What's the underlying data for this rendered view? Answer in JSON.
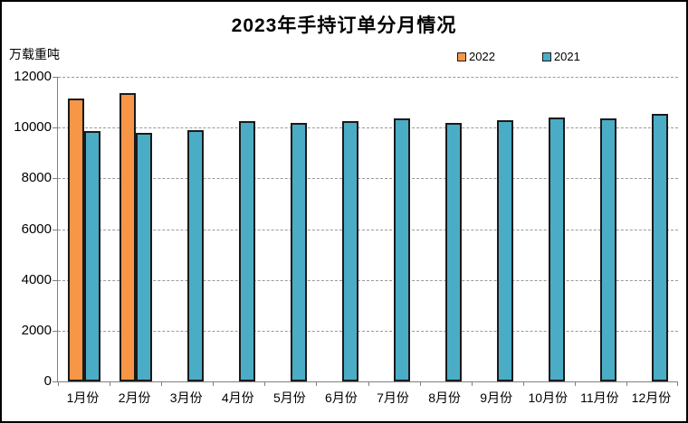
{
  "window": {
    "background": "#ffffff",
    "frame_border": "#000000"
  },
  "chart_data": {
    "type": "bar",
    "title": "2023年手持订单分月情况",
    "ylabel": "万载重吨",
    "xlabel": "",
    "categories": [
      "1月份",
      "2月份",
      "3月份",
      "4月份",
      "5月份",
      "6月份",
      "7月份",
      "8月份",
      "9月份",
      "10月份",
      "11月份",
      "12月份"
    ],
    "series": [
      {
        "name": "2022",
        "color": "#F79646",
        "values": [
          11150,
          11350,
          null,
          null,
          null,
          null,
          null,
          null,
          null,
          null,
          null,
          null
        ]
      },
      {
        "name": "2021",
        "color": "#4BACC6",
        "values": [
          9850,
          9800,
          9900,
          10250,
          10200,
          10250,
          10350,
          10200,
          10300,
          10400,
          10350,
          10550
        ]
      }
    ],
    "ylim": [
      0,
      12000
    ],
    "yticks": [
      0,
      2000,
      4000,
      6000,
      8000,
      10000,
      12000
    ],
    "grid": "horizontal-dashed",
    "gridline_color": "#999999",
    "axis_color": "#808080",
    "bar_border_color": "#1a1a1a",
    "legend_position": "top-right"
  }
}
